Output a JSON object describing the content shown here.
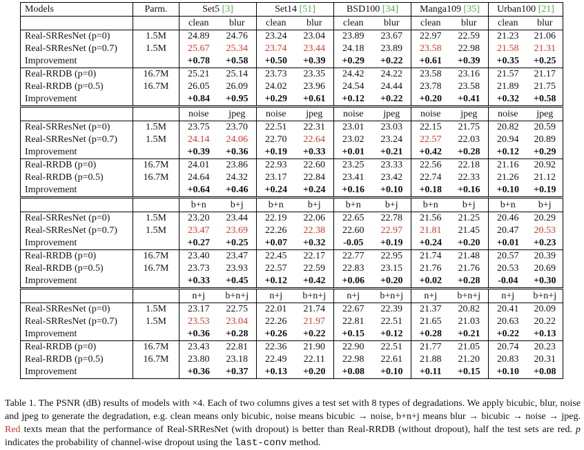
{
  "header": {
    "models": "Models",
    "parm": "Parm.",
    "datasets": [
      {
        "name": "Set5",
        "cite": "[3]"
      },
      {
        "name": "Set14",
        "cite": "[51]"
      },
      {
        "name": "BSD100",
        "cite": "[34]"
      },
      {
        "name": "Manga109",
        "cite": "[35]"
      },
      {
        "name": "Urban100",
        "cite": "[21]"
      }
    ]
  },
  "blocks": [
    {
      "sub": [
        "clean",
        "blur"
      ],
      "rows": [
        {
          "model": "Real-SRResNet (p=0)",
          "parm": "1.5M",
          "vals": [
            "24.89",
            "24.76",
            "23.24",
            "23.04",
            "23.89",
            "23.67",
            "22.97",
            "22.59",
            "21.23",
            "21.06"
          ],
          "red": []
        },
        {
          "model": "Real-SRResNet (p=0.7)",
          "parm": "1.5M",
          "vals": [
            "25.67",
            "25.34",
            "23.74",
            "23.44",
            "24.18",
            "23.89",
            "23.58",
            "22.98",
            "21.58",
            "21.31"
          ],
          "red": [
            0,
            1,
            2,
            3,
            6,
            8,
            9
          ]
        },
        {
          "model": "Improvement",
          "parm": "",
          "vals": [
            "+0.78",
            "+0.58",
            "+0.50",
            "+0.39",
            "+0.29",
            "+0.22",
            "+0.61",
            "+0.39",
            "+0.35",
            "+0.25"
          ],
          "bold": true
        },
        {
          "model": "Real-RRDB (p=0)",
          "parm": "16.7M",
          "vals": [
            "25.21",
            "25.14",
            "23.73",
            "23.35",
            "24.42",
            "24.22",
            "23.58",
            "23.16",
            "21.57",
            "21.17"
          ],
          "red": []
        },
        {
          "model": "Real-RRDB (p=0.5)",
          "parm": "16.7M",
          "vals": [
            "26.05",
            "26.09",
            "24.02",
            "23.96",
            "24.54",
            "24.44",
            "23.78",
            "23.58",
            "21.89",
            "21.75"
          ],
          "red": []
        },
        {
          "model": "Improvement",
          "parm": "",
          "vals": [
            "+0.84",
            "+0.95",
            "+0.29",
            "+0.61",
            "+0.12",
            "+0.22",
            "+0.20",
            "+0.41",
            "+0.32",
            "+0.58"
          ],
          "bold": true
        }
      ]
    },
    {
      "sub": [
        "noise",
        "jpeg"
      ],
      "rows": [
        {
          "model": "Real-SRResNet (p=0)",
          "parm": "1.5M",
          "vals": [
            "23.75",
            "23.70",
            "22.51",
            "22.31",
            "23.01",
            "23.03",
            "22.15",
            "21.75",
            "20.82",
            "20.59"
          ],
          "red": []
        },
        {
          "model": "Real-SRResNet (p=0.7)",
          "parm": "1.5M",
          "vals": [
            "24.14",
            "24.06",
            "22.70",
            "22.64",
            "23.02",
            "23.24",
            "22.57",
            "22.03",
            "20.94",
            "20.89"
          ],
          "red": [
            0,
            1,
            3,
            6
          ]
        },
        {
          "model": "Improvement",
          "parm": "",
          "vals": [
            "+0.39",
            "+0.36",
            "+0.19",
            "+0.33",
            "+0.01",
            "+0.21",
            "+0.42",
            "+0.28",
            "+0.12",
            "+0.29"
          ],
          "bold": true
        },
        {
          "model": "Real-RRDB (p=0)",
          "parm": "16.7M",
          "vals": [
            "24.01",
            "23.86",
            "22.93",
            "22.60",
            "23.25",
            "23.33",
            "22.56",
            "22.18",
            "21.16",
            "20.92"
          ],
          "red": []
        },
        {
          "model": "Real-RRDB (p=0.5)",
          "parm": "16.7M",
          "vals": [
            "24.64",
            "24.32",
            "23.17",
            "22.84",
            "23.41",
            "23.42",
            "22.74",
            "22.33",
            "21.26",
            "21.12"
          ],
          "red": []
        },
        {
          "model": "Improvement",
          "parm": "",
          "vals": [
            "+0.64",
            "+0.46",
            "+0.24",
            "+0.24",
            "+0.16",
            "+0.10",
            "+0.18",
            "+0.16",
            "+0.10",
            "+0.19"
          ],
          "bold": true
        }
      ]
    },
    {
      "sub": [
        "b+n",
        "b+j"
      ],
      "rows": [
        {
          "model": "Real-SRResNet (p=0)",
          "parm": "1.5M",
          "vals": [
            "23.20",
            "23.44",
            "22.19",
            "22.06",
            "22.65",
            "22.78",
            "21.56",
            "21.25",
            "20.46",
            "20.29"
          ],
          "red": []
        },
        {
          "model": "Real-SRResNet (p=0.7)",
          "parm": "1.5M",
          "vals": [
            "23.47",
            "23.69",
            "22.26",
            "22.38",
            "22.60",
            "22.97",
            "21.81",
            "21.45",
            "20.47",
            "20.53"
          ],
          "red": [
            0,
            1,
            3,
            5,
            6,
            9
          ]
        },
        {
          "model": "Improvement",
          "parm": "",
          "vals": [
            "+0.27",
            "+0.25",
            "+0.07",
            "+0.32",
            "-0.05",
            "+0.19",
            "+0.24",
            "+0.20",
            "+0.01",
            "+0.23"
          ],
          "bold": true
        },
        {
          "model": "Real-RRDB (p=0)",
          "parm": "16.7M",
          "vals": [
            "23.40",
            "23.47",
            "22.45",
            "22.17",
            "22.77",
            "22.95",
            "21.74",
            "21.48",
            "20.57",
            "20.39"
          ],
          "red": []
        },
        {
          "model": "Real-RRDB (p=0.5)",
          "parm": "16.7M",
          "vals": [
            "23.73",
            "23.93",
            "22.57",
            "22.59",
            "22.83",
            "23.15",
            "21.76",
            "21.76",
            "20.53",
            "20.69"
          ],
          "red": []
        },
        {
          "model": "Improvement",
          "parm": "",
          "vals": [
            "+0.33",
            "+0.45",
            "+0.12",
            "+0.42",
            "+0.06",
            "+0.20",
            "+0.02",
            "+0.28",
            "-0.04",
            "+0.30"
          ],
          "bold": true
        }
      ]
    },
    {
      "sub": [
        "n+j",
        "b+n+j"
      ],
      "rows": [
        {
          "model": "Real-SRResNet (p=0)",
          "parm": "1.5M",
          "vals": [
            "23.17",
            "22.75",
            "22.01",
            "21.74",
            "22.67",
            "22.39",
            "21.37",
            "20.82",
            "20.41",
            "20.09"
          ],
          "red": []
        },
        {
          "model": "Real-SRResNet (p=0.7)",
          "parm": "1.5M",
          "vals": [
            "23.53",
            "23.04",
            "22.26",
            "21.97",
            "22.81",
            "22.51",
            "21.65",
            "21.03",
            "20.63",
            "20.22"
          ],
          "red": [
            0,
            1,
            3
          ]
        },
        {
          "model": "Improvement",
          "parm": "",
          "vals": [
            "+0.36",
            "+0.28",
            "+0.26",
            "+0.22",
            "+0.15",
            "+0.12",
            "+0.28",
            "+0.21",
            "+0.22",
            "+0.13"
          ],
          "bold": true
        },
        {
          "model": "Real-RRDB (p=0)",
          "parm": "16.7M",
          "vals": [
            "23.43",
            "22.81",
            "22.36",
            "21.90",
            "22.90",
            "22.51",
            "21.77",
            "21.05",
            "20.74",
            "20.23"
          ],
          "red": []
        },
        {
          "model": "Real-RRDB (p=0.5)",
          "parm": "16.7M",
          "vals": [
            "23.80",
            "23.18",
            "22.49",
            "22.11",
            "22.98",
            "22.61",
            "21.88",
            "21.20",
            "20.83",
            "20.31"
          ],
          "red": []
        },
        {
          "model": "Improvement",
          "parm": "",
          "vals": [
            "+0.36",
            "+0.37",
            "+0.13",
            "+0.20",
            "+0.08",
            "+0.10",
            "+0.11",
            "+0.15",
            "+0.10",
            "+0.08"
          ],
          "bold": true
        }
      ]
    }
  ],
  "caption": {
    "p1": "Table 1. The PSNR (dB) results of models with ×4. Each of two columns gives a test set with 8 types of degradations. We apply bicubic, blur, noise and jpeg to generate the degradation, e.g. clean means only bicubic, noise means bicubic → noise, b+n+j means blur → bicubic → noise → jpeg.",
    "red_word": "Red",
    "p2": "texts mean that the performance of Real-SRResNet (with dropout) is better than Real-RRDB (without dropout), half the test sets are red.",
    "p_var": "p",
    "p3": "indicates the probability of channel-wise dropout using the",
    "code": "last-conv",
    "p4": "method."
  },
  "colors": {
    "red": "#d23a2b",
    "cite_green": "#4caf50"
  }
}
